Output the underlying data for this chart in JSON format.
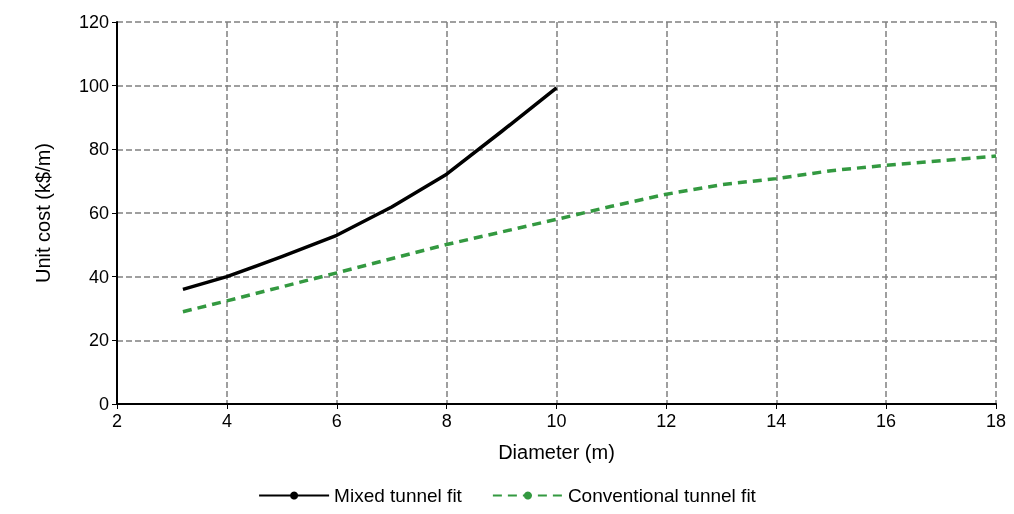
{
  "chart_data": {
    "type": "line",
    "xlabel": "Diameter (m)",
    "ylabel": "Unit cost (k$/m)",
    "xlim": [
      2,
      18
    ],
    "xticks": [
      2,
      4,
      6,
      8,
      10,
      12,
      14,
      16,
      18
    ],
    "ylim": [
      0,
      120
    ],
    "yticks": [
      0,
      20,
      40,
      60,
      80,
      100,
      120
    ],
    "grid": true,
    "legend": "bottom",
    "marker": "none",
    "series": [
      {
        "name": "Mixed tunnel fit",
        "color": "#000000",
        "line_style": "solid",
        "x": [
          3.2,
          4,
          5,
          6,
          7,
          8,
          9,
          10
        ],
        "values": [
          36,
          40,
          46.3,
          53,
          61.9,
          72.2,
          85.6,
          99.3
        ]
      },
      {
        "name": "Conventional tunnel fit",
        "color": "#339940",
        "line_style": "dashed",
        "x": [
          3.2,
          4,
          6,
          8,
          10,
          11,
          12,
          13,
          14,
          15,
          16,
          17,
          18
        ],
        "values": [
          29,
          32.4,
          41.2,
          50.1,
          58,
          62.1,
          65.9,
          68.9,
          70.8,
          73.3,
          75,
          76.4,
          77.9
        ]
      }
    ]
  }
}
